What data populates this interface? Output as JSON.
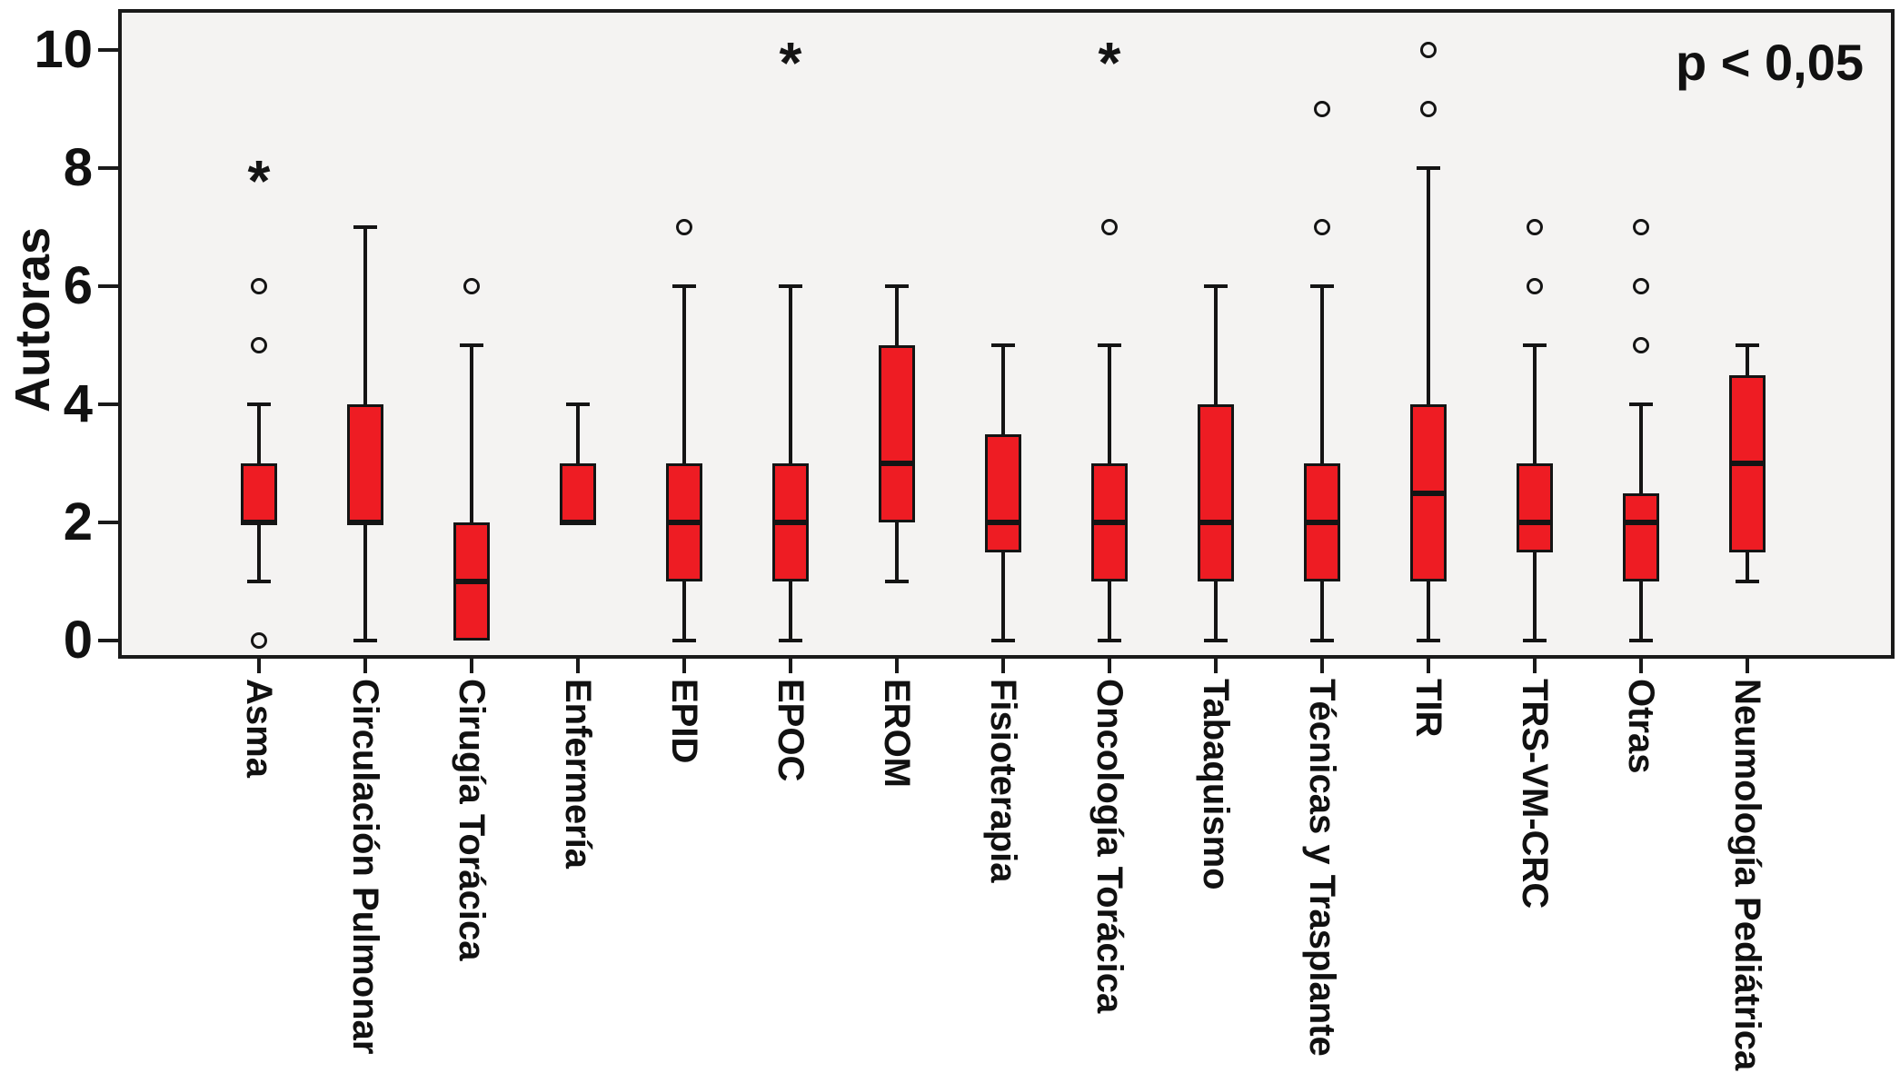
{
  "chart_data": {
    "type": "boxplot",
    "title": "",
    "xlabel": "",
    "ylabel": "Autoras",
    "ylim": [
      0,
      10
    ],
    "yticks": [
      0,
      2,
      4,
      6,
      8,
      10
    ],
    "annotation": "p < 0,05",
    "legend": "none",
    "grid": false,
    "colors": {
      "box_fill": "#ee1c23",
      "line": "#141414",
      "plot_background": "#f4f3f2",
      "outer_background": "#ffffff"
    },
    "categories": [
      "Asma",
      "Circulación Pulmonar",
      "Cirugía Torácica",
      "Enfermería",
      "EPID",
      "EPOC",
      "EROM",
      "Fisioterapia",
      "Oncología Torácica",
      "Tabaquismo",
      "Técnicas y Trasplante",
      "TIR",
      "TRS-VM-CRC",
      "Otras",
      "Neumología Pediátrica"
    ],
    "series": [
      {
        "name": "Asma",
        "whisker_min": 1,
        "q1": 2,
        "median": 2,
        "q3": 3,
        "whisker_max": 4,
        "outliers": [
          0,
          5,
          6
        ],
        "extreme_outliers": [
          8
        ]
      },
      {
        "name": "Circulación Pulmonar",
        "whisker_min": 0,
        "q1": 2,
        "median": 2,
        "q3": 4,
        "whisker_max": 7,
        "outliers": [],
        "extreme_outliers": []
      },
      {
        "name": "Cirugía Torácica",
        "whisker_min": 0,
        "q1": 0,
        "median": 1,
        "q3": 2,
        "whisker_max": 5,
        "outliers": [
          6
        ],
        "extreme_outliers": []
      },
      {
        "name": "Enfermería",
        "whisker_min": 2,
        "q1": 2,
        "median": 2,
        "q3": 3,
        "whisker_max": 4,
        "outliers": [],
        "extreme_outliers": []
      },
      {
        "name": "EPID",
        "whisker_min": 0,
        "q1": 1,
        "median": 2,
        "q3": 3,
        "whisker_max": 6,
        "outliers": [
          7
        ],
        "extreme_outliers": []
      },
      {
        "name": "EPOC",
        "whisker_min": 0,
        "q1": 1,
        "median": 2,
        "q3": 3,
        "whisker_max": 6,
        "outliers": [],
        "extreme_outliers": [
          10
        ]
      },
      {
        "name": "EROM",
        "whisker_min": 1,
        "q1": 2,
        "median": 3,
        "q3": 5,
        "whisker_max": 6,
        "outliers": [],
        "extreme_outliers": []
      },
      {
        "name": "Fisioterapia",
        "whisker_min": 0,
        "q1": 1.5,
        "median": 2,
        "q3": 3.5,
        "whisker_max": 5,
        "outliers": [],
        "extreme_outliers": []
      },
      {
        "name": "Oncología Torácica",
        "whisker_min": 0,
        "q1": 1,
        "median": 2,
        "q3": 3,
        "whisker_max": 5,
        "outliers": [
          7
        ],
        "extreme_outliers": [
          10
        ]
      },
      {
        "name": "Tabaquismo",
        "whisker_min": 0,
        "q1": 1,
        "median": 2,
        "q3": 4,
        "whisker_max": 6,
        "outliers": [],
        "extreme_outliers": []
      },
      {
        "name": "Técnicas y Trasplante",
        "whisker_min": 0,
        "q1": 1,
        "median": 2,
        "q3": 3,
        "whisker_max": 6,
        "outliers": [
          7,
          9
        ],
        "extreme_outliers": []
      },
      {
        "name": "TIR",
        "whisker_min": 0,
        "q1": 1,
        "median": 2.5,
        "q3": 4,
        "whisker_max": 8,
        "outliers": [
          9,
          10
        ],
        "extreme_outliers": []
      },
      {
        "name": "TRS-VM-CRC",
        "whisker_min": 0,
        "q1": 1.5,
        "median": 2,
        "q3": 3,
        "whisker_max": 5,
        "outliers": [
          6,
          7
        ],
        "extreme_outliers": []
      },
      {
        "name": "Otras",
        "whisker_min": 0,
        "q1": 1,
        "median": 2,
        "q3": 2.5,
        "whisker_max": 4,
        "outliers": [
          5,
          6,
          7
        ],
        "extreme_outliers": []
      },
      {
        "name": "Neumología Pediátrica",
        "whisker_min": 1,
        "q1": 1.5,
        "median": 3,
        "q3": 4.5,
        "whisker_max": 5,
        "outliers": [],
        "extreme_outliers": []
      }
    ],
    "outlier_legend": {
      "circle_icon_meaning": "outlier",
      "star_icon_meaning": "extreme outlier"
    }
  }
}
